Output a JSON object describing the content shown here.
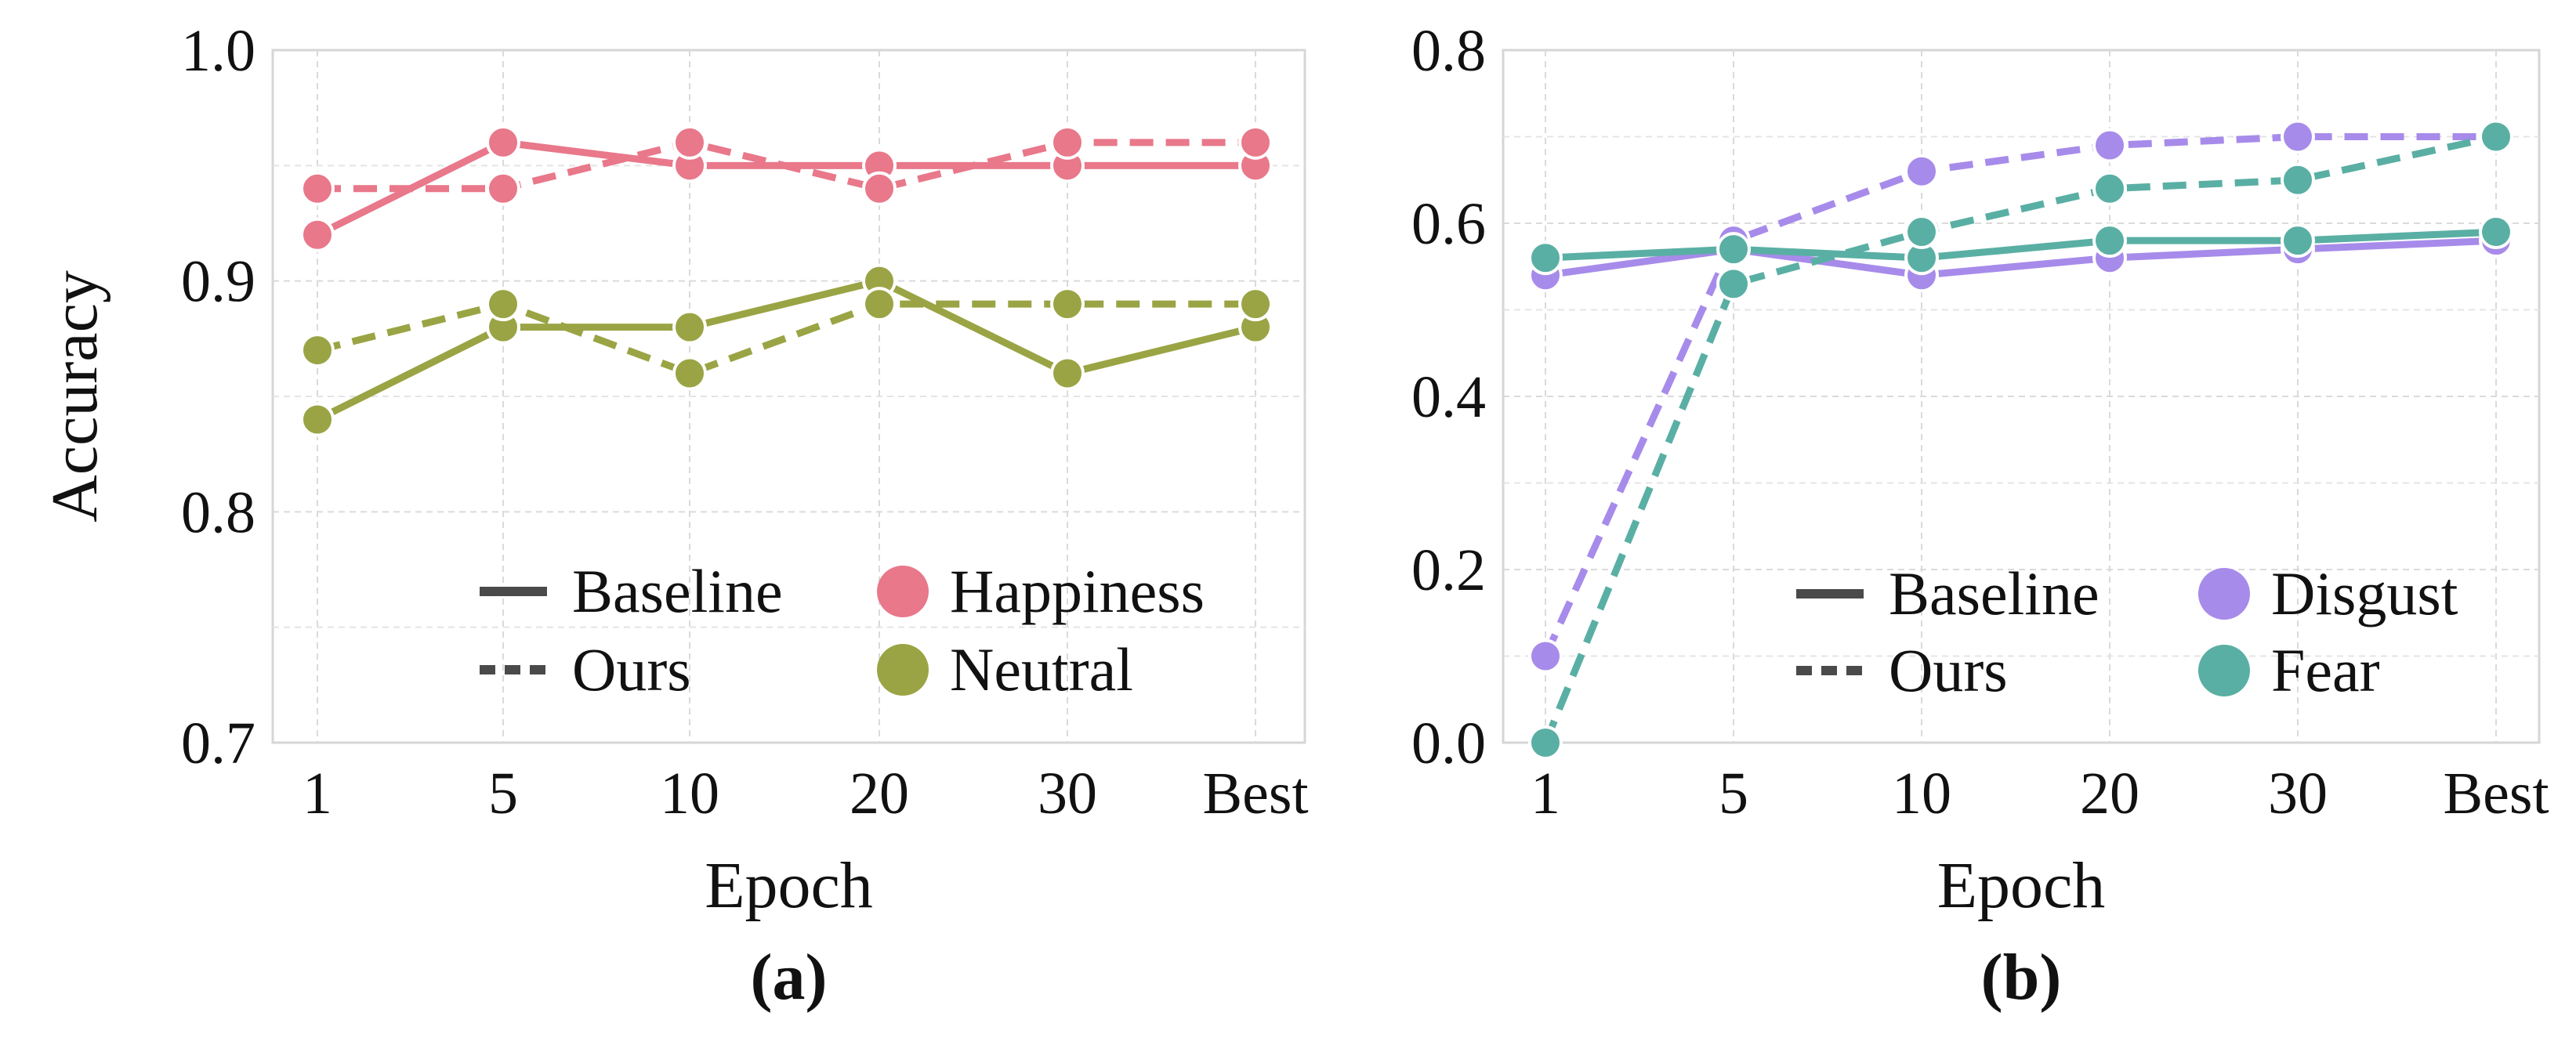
{
  "chart_data": [
    {
      "type": "line",
      "caption": "(a)",
      "xlabel": "Epoch",
      "ylabel": "Accuracy",
      "categories": [
        "1",
        "5",
        "10",
        "20",
        "30",
        "Best"
      ],
      "ylim": [
        0.7,
        1.0
      ],
      "yticks": [
        "0.7",
        "0.8",
        "0.9",
        "1.0"
      ],
      "grid": true,
      "legend_position": "lower-right",
      "style_legend": [
        {
          "label": "Baseline",
          "style": "solid"
        },
        {
          "label": "Ours",
          "style": "dashed"
        }
      ],
      "color_legend": [
        {
          "label": "Happiness",
          "color": "#e8788a"
        },
        {
          "label": "Neutral",
          "color": "#9aa444"
        }
      ],
      "series": [
        {
          "name": "Happiness",
          "variant": "Baseline",
          "color": "#e8788a",
          "style": "solid",
          "values": [
            0.92,
            0.96,
            0.95,
            0.95,
            0.95,
            0.95
          ]
        },
        {
          "name": "Happiness",
          "variant": "Ours",
          "color": "#e8788a",
          "style": "dashed",
          "values": [
            0.94,
            0.94,
            0.96,
            0.94,
            0.96,
            0.96
          ]
        },
        {
          "name": "Neutral",
          "variant": "Baseline",
          "color": "#9aa444",
          "style": "solid",
          "values": [
            0.84,
            0.88,
            0.88,
            0.9,
            0.86,
            0.88
          ]
        },
        {
          "name": "Neutral",
          "variant": "Ours",
          "color": "#9aa444",
          "style": "dashed",
          "values": [
            0.87,
            0.89,
            0.86,
            0.89,
            0.89,
            0.89
          ]
        }
      ]
    },
    {
      "type": "line",
      "caption": "(b)",
      "xlabel": "Epoch",
      "ylabel": "",
      "categories": [
        "1",
        "5",
        "10",
        "20",
        "30",
        "Best"
      ],
      "ylim": [
        0.0,
        0.8
      ],
      "yticks": [
        "0.0",
        "0.2",
        "0.4",
        "0.6",
        "0.8"
      ],
      "grid": true,
      "legend_position": "lower-right",
      "style_legend": [
        {
          "label": "Baseline",
          "style": "solid"
        },
        {
          "label": "Ours",
          "style": "dashed"
        }
      ],
      "color_legend": [
        {
          "label": "Disgust",
          "color": "#a78bea"
        },
        {
          "label": "Fear",
          "color": "#5aafa4"
        }
      ],
      "series": [
        {
          "name": "Disgust",
          "variant": "Baseline",
          "color": "#a78bea",
          "style": "solid",
          "values": [
            0.54,
            0.57,
            0.54,
            0.56,
            0.57,
            0.58
          ]
        },
        {
          "name": "Disgust",
          "variant": "Ours",
          "color": "#a78bea",
          "style": "dashed",
          "values": [
            0.1,
            0.58,
            0.66,
            0.69,
            0.7,
            0.7
          ]
        },
        {
          "name": "Fear",
          "variant": "Baseline",
          "color": "#5aafa4",
          "style": "solid",
          "values": [
            0.56,
            0.57,
            0.56,
            0.58,
            0.58,
            0.59
          ]
        },
        {
          "name": "Fear",
          "variant": "Ours",
          "color": "#5aafa4",
          "style": "dashed",
          "values": [
            0.0,
            0.53,
            0.59,
            0.64,
            0.65,
            0.7
          ]
        }
      ]
    }
  ]
}
